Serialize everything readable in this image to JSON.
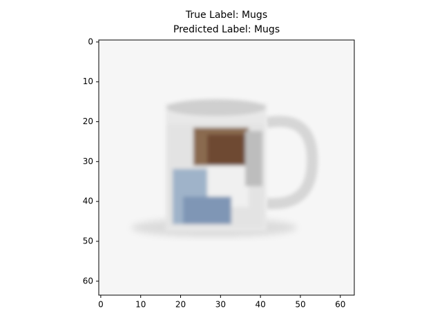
{
  "chart_data": {
    "type": "image",
    "title": [
      "True Label: Mugs",
      "Predicted Label: Mugs"
    ],
    "xlim": [
      -0.5,
      63.5
    ],
    "ylim": [
      63.5,
      -0.5
    ],
    "xticks": [
      0,
      10,
      20,
      30,
      40,
      50,
      60
    ],
    "yticks": [
      0,
      10,
      20,
      30,
      40,
      50,
      60
    ]
  }
}
